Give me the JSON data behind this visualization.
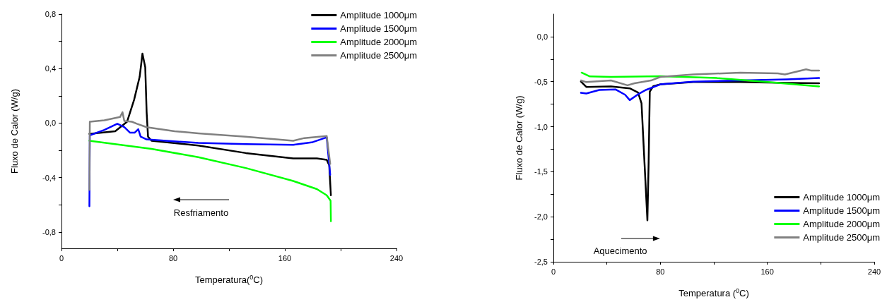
{
  "chart_data": [
    {
      "type": "line",
      "ylabel": "Fluxo de Calor (W/g)",
      "xlabel": "Temperatura($^{0}$C)",
      "annotations": [
        "Resfriamento"
      ],
      "xlim": [
        0,
        240
      ],
      "xticks": [
        0,
        {
          "value": 40,
          "label": null
        },
        80,
        {
          "value": 120,
          "label": null
        },
        160,
        {
          "value": 200,
          "label": null
        },
        240
      ],
      "ylim": [
        -0.92,
        0.8
      ],
      "yticks": [
        {
          "value": -0.8,
          "label": "-0,8"
        },
        {
          "value": -0.6,
          "label": null
        },
        {
          "value": -0.4,
          "label": "-0,4"
        },
        {
          "value": -0.2,
          "label": null
        },
        {
          "value": 0,
          "label": "0,0"
        },
        {
          "value": 0.2,
          "label": null
        },
        {
          "value": 0.4,
          "label": "0,4"
        },
        {
          "value": 0.6,
          "label": null
        },
        {
          "value": 0.8,
          "label": "0,8"
        }
      ],
      "grid": false,
      "legend": "top right",
      "series": [
        {
          "name": "Amplitude 1000μm",
          "color": "#000000",
          "x": [
            20,
            38.5,
            47,
            52,
            56,
            58,
            60,
            61,
            62,
            64.5,
            98,
            132,
            166,
            183,
            190,
            191.8,
            193
          ],
          "values": [
            -0.08,
            -0.06,
            0.01,
            0.17,
            0.34,
            0.51,
            0.41,
            0.08,
            -0.1,
            -0.13,
            -0.165,
            -0.22,
            -0.26,
            -0.26,
            -0.27,
            -0.31,
            -0.53
          ]
        },
        {
          "name": "Amplitude 1500μm",
          "color": "#0000ff",
          "x": [
            20,
            20.3,
            30.7,
            40,
            45,
            49,
            52.5,
            55,
            56.7,
            61,
            98,
            132,
            166,
            180,
            190,
            192.5
          ],
          "values": [
            -0.61,
            -0.09,
            -0.05,
            -0.005,
            -0.03,
            -0.07,
            -0.07,
            -0.045,
            -0.1,
            -0.12,
            -0.146,
            -0.155,
            -0.16,
            -0.14,
            -0.105,
            -0.38
          ]
        },
        {
          "name": "Amplitude 2000μm",
          "color": "#00ff00",
          "x": [
            20,
            64.5,
            98,
            132,
            166,
            183,
            190,
            192.8,
            193
          ],
          "values": [
            -0.13,
            -0.19,
            -0.25,
            -0.33,
            -0.425,
            -0.485,
            -0.53,
            -0.57,
            -0.72
          ]
        },
        {
          "name": "Amplitude 2500μm",
          "color": "#808080",
          "x": [
            20,
            20.3,
            30.7,
            42,
            43.7,
            45,
            50.4,
            54,
            61,
            81,
            98,
            132,
            166,
            174,
            190,
            192.5
          ],
          "values": [
            -0.49,
            0.01,
            0.02,
            0.045,
            0.08,
            0.015,
            0.01,
            -0.005,
            -0.03,
            -0.06,
            -0.075,
            -0.1,
            -0.13,
            -0.11,
            -0.095,
            -0.3
          ]
        }
      ]
    },
    {
      "type": "line",
      "ylabel": "Fluxo de Calor (W/g)",
      "xlabel": "Temperatura ($^{0}$C)",
      "annotations": [
        "Aquecimento"
      ],
      "xlim": [
        0,
        240
      ],
      "xticks": [
        0,
        {
          "value": 40,
          "label": null
        },
        80,
        {
          "value": 120,
          "label": null
        },
        160,
        {
          "value": 200,
          "label": null
        },
        240
      ],
      "ylim": [
        -2.5,
        0.25
      ],
      "yticks": [
        {
          "value": -2.5,
          "label": "-2,5"
        },
        {
          "value": -2.25,
          "label": null
        },
        {
          "value": -2,
          "label": "-2,0"
        },
        {
          "value": -1.75,
          "label": null
        },
        {
          "value": -1.5,
          "label": "-1,5"
        },
        {
          "value": -1.25,
          "label": null
        },
        {
          "value": -1,
          "label": "-1,0"
        },
        {
          "value": -0.75,
          "label": null
        },
        {
          "value": -0.5,
          "label": "-0,5"
        },
        {
          "value": -0.25,
          "label": null
        },
        {
          "value": 0,
          "label": "0,0"
        }
      ],
      "grid": false,
      "legend": "bottom right",
      "series": [
        {
          "name": "Amplitude 1000μm",
          "color": "#000000",
          "x": [
            20.6,
            24.6,
            43.1,
            57.1,
            63.3,
            65.9,
            68.2,
            70.3,
            71.2,
            72.1,
            74.7,
            80,
            104.6,
            139.8,
            174.9,
            198.7
          ],
          "values": [
            -0.5,
            -0.558,
            -0.553,
            -0.574,
            -0.62,
            -0.74,
            -1.42,
            -2.04,
            -1.42,
            -0.61,
            -0.55,
            -0.53,
            -0.505,
            -0.505,
            -0.513,
            -0.518
          ]
        },
        {
          "name": "Amplitude 1500μm",
          "color": "#0000ff",
          "x": [
            20.6,
            24.6,
            34.3,
            46.6,
            53.6,
            57.1,
            64.2,
            69.5,
            80,
            104.6,
            139.8,
            174.9,
            198.7
          ],
          "values": [
            -0.624,
            -0.632,
            -0.592,
            -0.587,
            -0.645,
            -0.705,
            -0.632,
            -0.59,
            -0.53,
            -0.5,
            -0.487,
            -0.474,
            -0.46
          ]
        },
        {
          "name": "Amplitude 2000μm",
          "color": "#00ff00",
          "x": [
            21.1,
            27.3,
            43.1,
            80,
            122.2,
            157.4,
            198.7
          ],
          "values": [
            -0.4,
            -0.442,
            -0.447,
            -0.44,
            -0.46,
            -0.5,
            -0.553
          ]
        },
        {
          "name": "Amplitude 2500μm",
          "color": "#808080",
          "x": [
            20.6,
            24.6,
            43.1,
            55.4,
            60.7,
            73,
            80,
            104.6,
            139.8,
            167.9,
            173.2,
            189,
            192.5,
            198.7
          ],
          "values": [
            -0.487,
            -0.505,
            -0.487,
            -0.54,
            -0.518,
            -0.487,
            -0.447,
            -0.42,
            -0.4,
            -0.408,
            -0.42,
            -0.363,
            -0.376,
            -0.376
          ]
        }
      ]
    }
  ]
}
